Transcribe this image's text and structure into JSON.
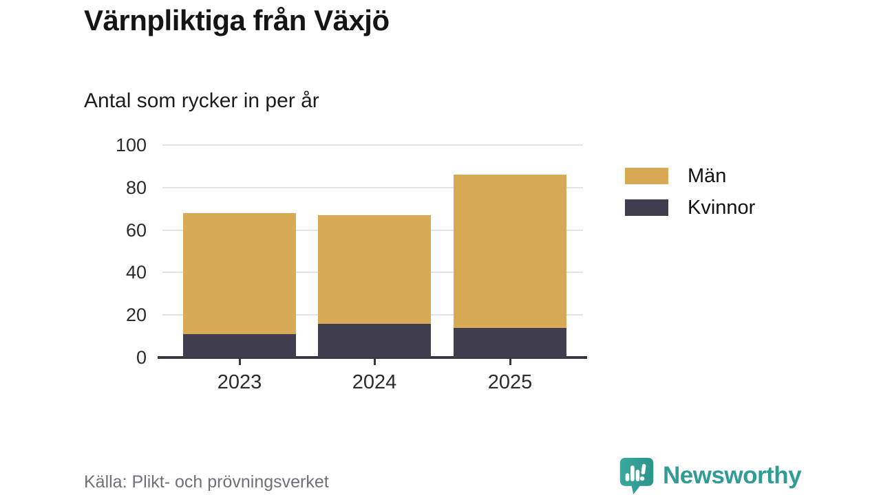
{
  "title": "Värnpliktiga från Växjö",
  "subtitle": "Antal som rycker in per år",
  "source": "Källa: Plikt- och prövningsverket",
  "brand": {
    "name": "Newsworthy",
    "color": "#2f9d96",
    "icon": "newsworthy-speech-bubble-chart-icon"
  },
  "colors": {
    "men": "#d8aa56",
    "women": "#403e4e",
    "grid": "#e3e3e3",
    "axis": "#36363c",
    "title_text": "#151515",
    "source_text": "#70707a",
    "brand_teal": "#2f9d96"
  },
  "chart_data": {
    "type": "bar",
    "stacked": true,
    "title": "Värnpliktiga från Växjö",
    "subtitle": "Antal som rycker in per år",
    "categories": [
      "2023",
      "2024",
      "2025"
    ],
    "series": [
      {
        "name": "Män",
        "color": "#d8aa56",
        "values": [
          57,
          51,
          72
        ]
      },
      {
        "name": "Kvinnor",
        "color": "#403e4e",
        "values": [
          11,
          16,
          14
        ]
      }
    ],
    "stacked_totals": [
      68,
      67,
      86
    ],
    "stack_order_bottom_to_top": [
      "Kvinnor",
      "Män"
    ],
    "ylim": [
      0,
      100
    ],
    "yticks": [
      0,
      20,
      40,
      60,
      80,
      100
    ],
    "xlabel": "",
    "ylabel": "",
    "grid": true,
    "legend_position": "right"
  }
}
